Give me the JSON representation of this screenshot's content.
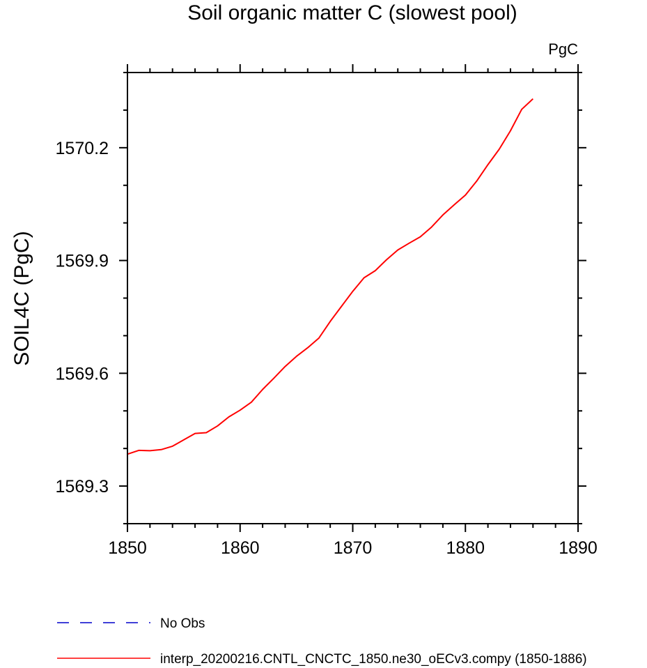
{
  "chart_data": {
    "type": "line",
    "title": "Soil organic matter C (slowest pool)",
    "units": "PgC",
    "ylabel": "SOIL4C  (PgC)",
    "xlabel": "",
    "xlim": [
      1850,
      1890
    ],
    "ylim": [
      1569.2,
      1570.4
    ],
    "xticks": [
      1850,
      1860,
      1870,
      1880,
      1890
    ],
    "xtick_labels": [
      "1850",
      "1860",
      "1870",
      "1880",
      "1890"
    ],
    "yticks": [
      1569.3,
      1569.6,
      1569.9,
      1570.2
    ],
    "ytick_labels": [
      "1569.3",
      "1569.6",
      "1569.9",
      "1570.2"
    ],
    "x_minor_step": 2,
    "y_minor_step": 0.1,
    "grid": false,
    "legend_position": "bottom-left",
    "series": [
      {
        "name": "No Obs",
        "color": "#0000cc",
        "dash": "dashed",
        "x": [],
        "y": []
      },
      {
        "name": "interp_20200216.CNTL_CNCTC_1850.ne30_oECv3.compy (1850-1886)",
        "color": "#ff0000",
        "dash": "solid",
        "x": [
          1850,
          1851,
          1852,
          1853,
          1854,
          1855,
          1856,
          1857,
          1858,
          1859,
          1860,
          1861,
          1862,
          1863,
          1864,
          1865,
          1866,
          1867,
          1868,
          1869,
          1870,
          1871,
          1872,
          1873,
          1874,
          1875,
          1876,
          1877,
          1878,
          1879,
          1880,
          1881,
          1882,
          1883,
          1884,
          1885,
          1886
        ],
        "y": [
          1569.385,
          1569.395,
          1569.394,
          1569.397,
          1569.406,
          1569.423,
          1569.44,
          1569.442,
          1569.46,
          1569.484,
          1569.502,
          1569.523,
          1569.557,
          1569.587,
          1569.618,
          1569.645,
          1569.668,
          1569.694,
          1569.738,
          1569.778,
          1569.818,
          1569.854,
          1569.873,
          1569.902,
          1569.928,
          1569.946,
          1569.963,
          1569.989,
          1570.021,
          1570.048,
          1570.074,
          1570.111,
          1570.155,
          1570.196,
          1570.245,
          1570.302,
          1570.33
        ]
      }
    ]
  }
}
